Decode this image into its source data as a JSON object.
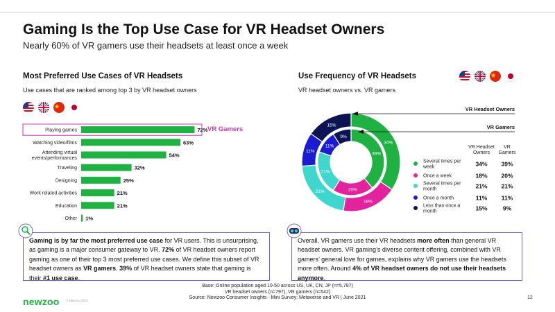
{
  "title": "Gaming Is the Top Use Case for VR Headset Owners",
  "subtitle": "Nearly 60% of VR gamers use their headsets at least once a week",
  "colors": {
    "green": "#1fb141",
    "pink": "#e2239d",
    "teal": "#3fd6cd",
    "blue": "#1b1bd0",
    "navy": "#0c1454",
    "accent": "#c737b5",
    "box": "#6c63c8"
  },
  "flag_names": [
    "us-flag",
    "uk-flag",
    "china-flag",
    "japan-flag"
  ],
  "left": {
    "title": "Most Preferred Use Cases of VR Headsets",
    "subtitle": "Use cases that are ranked among top 3 by VR headset owners",
    "highlight_label": "VR Gamers"
  },
  "right": {
    "title": "Use Frequency of VR Headsets",
    "subtitle": "VR headset owners vs. VR gamers",
    "outer_ring_label": "VR Headset Owners",
    "inner_ring_label": "VR Gamers",
    "col_owners": [
      "VR Headset",
      "Owners"
    ],
    "col_gamers": [
      "VR",
      "Gamers"
    ]
  },
  "chart_data": [
    {
      "type": "bar",
      "orientation": "horizontal",
      "title": "Most Preferred Use Cases of VR Headsets",
      "categories": [
        "Playing games",
        "Watching video/films",
        "Attending virtual events/performances",
        "Traveling",
        "Designing",
        "Work related activities",
        "Education",
        "Other"
      ],
      "category_lines": [
        [
          "Playing games"
        ],
        [
          "Watching video/films"
        ],
        [
          "Attending virtual",
          "events/performances"
        ],
        [
          "Traveling"
        ],
        [
          "Designing"
        ],
        [
          "Work related activities"
        ],
        [
          "Education"
        ],
        [
          "Other"
        ]
      ],
      "values": [
        72,
        63,
        54,
        32,
        25,
        21,
        21,
        1
      ],
      "value_labels": [
        "72%",
        "63%",
        "54%",
        "32%",
        "25%",
        "21%",
        "21%",
        "1%"
      ],
      "xlim": [
        0,
        100
      ],
      "highlight_index": 0
    },
    {
      "type": "pie",
      "style": "double-donut",
      "title": "Use Frequency of VR Headsets",
      "categories": [
        "Several times per week",
        "Once a week",
        "Several times per month",
        "Once a month",
        "Less than once a month"
      ],
      "category_lines": [
        [
          "Several times per",
          "week"
        ],
        [
          "Once a week"
        ],
        [
          "Several times per",
          "month"
        ],
        [
          "Once a month"
        ],
        [
          "Less than once a",
          "month"
        ]
      ],
      "series": [
        {
          "name": "VR Headset Owners",
          "ring": "outer",
          "values": [
            34,
            18,
            21,
            11,
            15
          ],
          "labels": [
            "34%",
            "18%",
            "21%",
            "11%",
            "15%"
          ]
        },
        {
          "name": "VR Gamers",
          "ring": "inner",
          "values": [
            39,
            20,
            21,
            11,
            9
          ],
          "labels": [
            "39%",
            "20%",
            "21%",
            "11%",
            "9%"
          ]
        }
      ]
    }
  ],
  "note_left": {
    "b1": "Gaming is by far the most preferred use case",
    "t1": " for VR users. This is unsurprising, as gaming is a major consumer gateway to VR. ",
    "b2": "72%",
    "t2": " of VR headset owners report gaming as one of their top 3 most preferred use cases. We define this subset of VR headset owners as ",
    "b3": "VR gamers",
    "t3": ". ",
    "b4": "39%",
    "t4": " of VR headset owners state that gaming is their ",
    "b5": "#1 use case",
    "t5": "."
  },
  "note_right": {
    "t1": "Overall, VR gamers use their VR headsets ",
    "b1": "more often",
    "t2": " than general VR headset owners. VR gaming’s diverse content offering, combined with VR gamers’ general love for games, explains why VR gamers use the headsets more often. Around ",
    "b2": "4% of VR headset owners do not use their headsets anymore",
    "t3": "."
  },
  "footer": {
    "line1": "Base: Online population aged 10-50 across US, UK, CN, JP (n=5,797)",
    "line2": "VR headset owners (n=797), VR gamers (n=542)",
    "line3": "Source: Newzoo Consumer Insights - Mini Survey: Metaverse and VR | June 2021",
    "logo": "newzoo",
    "copyright": "© Newzoo 2021",
    "page": "12"
  }
}
